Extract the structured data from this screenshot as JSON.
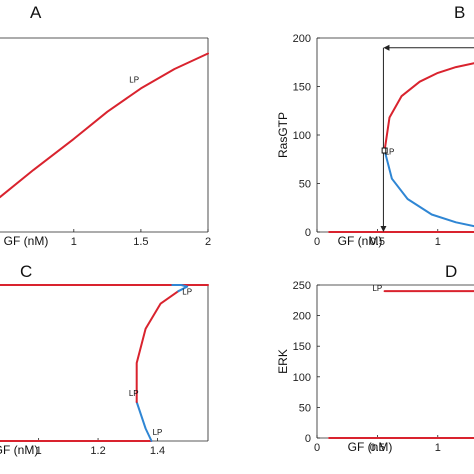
{
  "chart_data": [
    {
      "panel": "A",
      "type": "line",
      "xlabel": "GF (nM)",
      "ylabel": "",
      "xlim": [
        0.45,
        2.0
      ],
      "ylim": [
        0,
        100
      ],
      "xticks": [
        "1",
        "1.5",
        "2"
      ],
      "yticks": [],
      "series": [
        {
          "color": "#d9232e",
          "x": [
            0.45,
            0.7,
            1.0,
            1.25,
            1.5,
            1.75,
            2.0
          ],
          "y": [
            18,
            32,
            48,
            62,
            74,
            84,
            92
          ]
        }
      ],
      "annotations": [
        {
          "text": "LP",
          "x": 1.45,
          "y": 77
        }
      ]
    },
    {
      "panel": "B",
      "type": "line",
      "xlabel": "GF (nM)",
      "ylabel": "RasGTP",
      "xlim": [
        0,
        1.3
      ],
      "ylim": [
        0,
        200
      ],
      "xticks": [
        "0",
        "0.5",
        "1"
      ],
      "yticks": [
        "0",
        "50",
        "100",
        "150",
        "200"
      ],
      "series": [
        {
          "color": "#d9232e",
          "x": [
            0.1,
            1.3
          ],
          "y": [
            0,
            0
          ]
        },
        {
          "color": "#d9232e",
          "x": [
            0.56,
            0.6,
            0.7,
            0.85,
            1.0,
            1.15,
            1.3
          ],
          "y": [
            84,
            118,
            140,
            155,
            164,
            170,
            174
          ]
        },
        {
          "color": "#2f86d4",
          "x": [
            0.56,
            0.62,
            0.75,
            0.95,
            1.15,
            1.3
          ],
          "y": [
            84,
            55,
            34,
            18,
            10,
            6
          ]
        }
      ],
      "vertical_arrow": {
        "x": 0.55,
        "from_y": 190,
        "to_y": 0
      },
      "horizontal_arrow": {
        "y": 190,
        "from_x": 1.3,
        "to_x": 0.55
      },
      "marker": {
        "shape": "square",
        "x": 0.56,
        "y": 84
      },
      "annotations": [
        {
          "text": "LP",
          "x": 0.6,
          "y": 80
        }
      ]
    },
    {
      "panel": "C",
      "type": "line",
      "xlabel": "GF (nM)",
      "ylabel": "",
      "xlim": [
        0.87,
        1.57
      ],
      "ylim": [
        0,
        100
      ],
      "xticks": [
        "1",
        "1.2",
        "1.4"
      ],
      "yticks": [],
      "series": [
        {
          "color": "#d9232e",
          "x": [
            0.87,
            1.38
          ],
          "y": [
            0,
            0
          ]
        },
        {
          "color": "#d9232e",
          "x": [
            0.87,
            1.57
          ],
          "y": [
            100,
            100
          ]
        },
        {
          "color": "#2f86d4",
          "x": [
            1.38,
            1.36,
            1.33
          ],
          "y": [
            0,
            8,
            25
          ]
        },
        {
          "color": "#d9232e",
          "x": [
            1.33,
            1.33,
            1.36,
            1.41,
            1.47
          ],
          "y": [
            25,
            50,
            72,
            88,
            96
          ]
        },
        {
          "color": "#2f86d4",
          "x": [
            1.47,
            1.5,
            1.48,
            1.45
          ],
          "y": [
            96,
            99,
            100,
            100
          ]
        }
      ],
      "annotations": [
        {
          "text": "LP",
          "x": 1.5,
          "y": 94
        },
        {
          "text": "LP",
          "x": 1.32,
          "y": 29
        },
        {
          "text": "LP",
          "x": 1.4,
          "y": 4
        }
      ]
    },
    {
      "panel": "D",
      "type": "line",
      "xlabel": "GF (nM)",
      "ylabel": "ERK",
      "xlim": [
        0,
        1.3
      ],
      "ylim": [
        0,
        250
      ],
      "xticks": [
        "0",
        "0.5",
        "1"
      ],
      "yticks": [
        "0",
        "50",
        "100",
        "150",
        "200",
        "250"
      ],
      "series": [
        {
          "color": "#d9232e",
          "x": [
            0.1,
            1.3
          ],
          "y": [
            0,
            0
          ]
        },
        {
          "color": "#d9232e",
          "x": [
            0.56,
            1.3
          ],
          "y": [
            240,
            240
          ]
        }
      ],
      "annotations": [
        {
          "text": "LP",
          "x": 0.5,
          "y": 240
        }
      ]
    }
  ]
}
